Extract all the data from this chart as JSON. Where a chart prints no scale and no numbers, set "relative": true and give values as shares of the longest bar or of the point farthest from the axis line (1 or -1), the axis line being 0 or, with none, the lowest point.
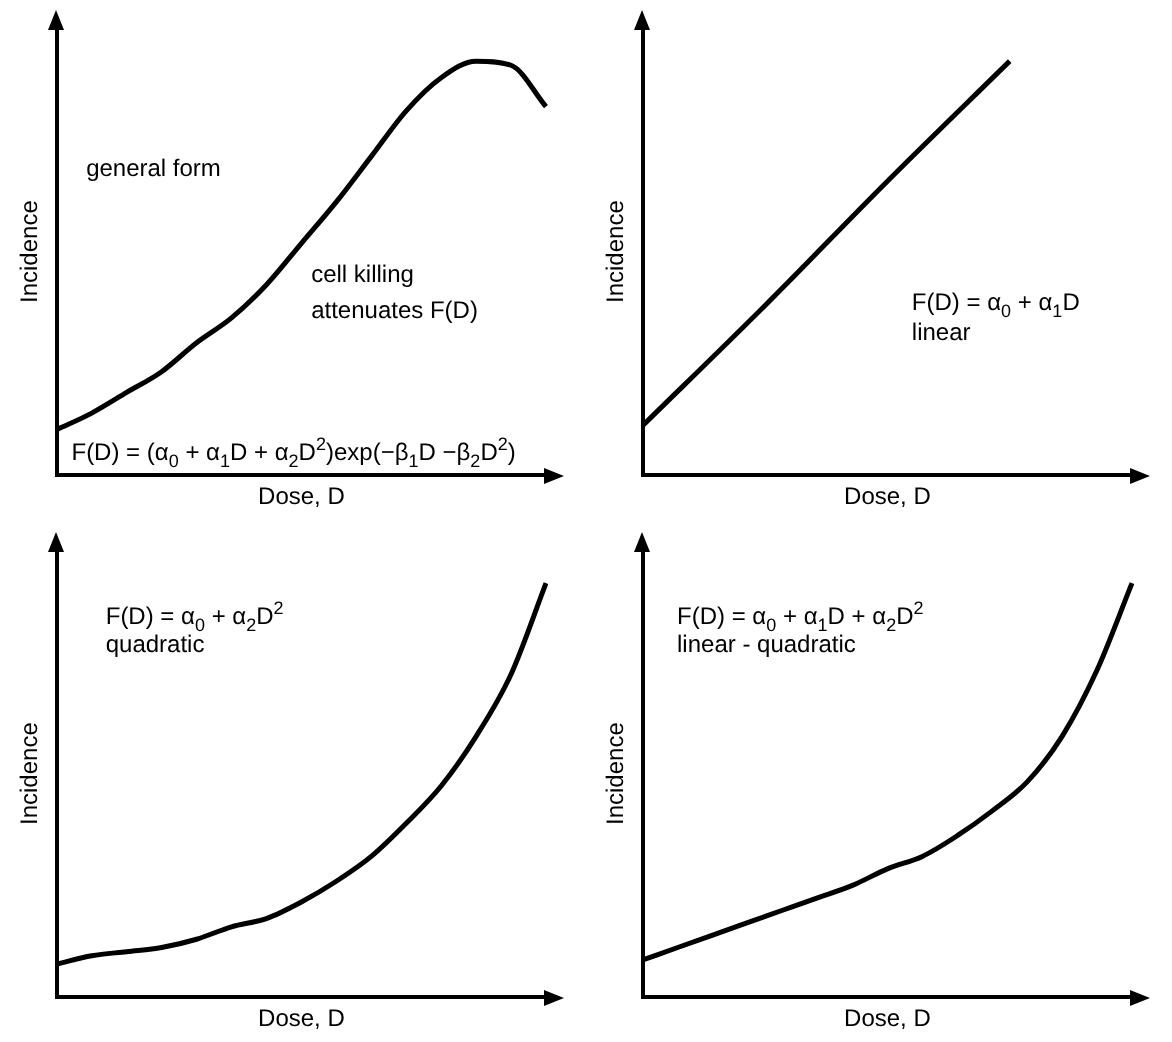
{
  "chart_data": [
    {
      "type": "line",
      "relative": true,
      "xlabel": "Dose, D",
      "ylabel": "Incidence",
      "tick_labels": false,
      "color": "#000000",
      "categories": [
        null,
        null,
        null,
        null,
        null,
        null,
        null,
        null,
        null,
        null,
        null,
        null,
        null,
        null,
        null
      ],
      "values": [
        0.11,
        0.15,
        0.2,
        0.25,
        0.32,
        0.38,
        0.46,
        0.56,
        0.66,
        0.77,
        0.88,
        0.96,
        1.0,
        0.99,
        0.89
      ],
      "annotations": [
        "general form",
        "cell killing",
        "attenuates F(D)",
        "F(D) = (α$_{0}$ + α$_{1}$D + α$_{2}$D$^{2}$)exp(−β$_{1}$D −β$_{2}$D$^{2}$)"
      ]
    },
    {
      "type": "line",
      "relative": true,
      "xlabel": "Dose, D",
      "ylabel": "Incidence",
      "tick_labels": false,
      "color": "#000000",
      "categories": [
        null,
        null,
        null,
        null,
        null
      ],
      "values": [
        0.12,
        0.41,
        0.71,
        1.0,
        null
      ],
      "annotations": [
        "F(D) = α$_{0}$ + α$_{1}$D",
        "linear"
      ]
    },
    {
      "type": "line",
      "relative": true,
      "xlabel": "Dose, D",
      "ylabel": "Incidence",
      "tick_labels": false,
      "color": "#000000",
      "categories": [
        null,
        null,
        null,
        null,
        null,
        null,
        null,
        null,
        null,
        null,
        null,
        null,
        null,
        null,
        null
      ],
      "values": [
        0.08,
        0.1,
        0.11,
        0.12,
        0.14,
        0.17,
        0.19,
        0.23,
        0.28,
        0.34,
        0.42,
        0.51,
        0.63,
        0.78,
        1.0
      ],
      "annotations": [
        "F(D) = α$_{0}$ + α$_{2}$D$^{2}$",
        "quadratic"
      ]
    },
    {
      "type": "line",
      "relative": true,
      "xlabel": "Dose, D",
      "ylabel": "Incidence",
      "tick_labels": false,
      "color": "#000000",
      "categories": [
        null,
        null,
        null,
        null,
        null,
        null,
        null,
        null,
        null,
        null,
        null,
        null,
        null,
        null,
        null
      ],
      "values": [
        0.09,
        0.12,
        0.15,
        0.18,
        0.21,
        0.24,
        0.27,
        0.31,
        0.34,
        0.39,
        0.45,
        0.52,
        0.63,
        0.79,
        1.0
      ],
      "annotations": [
        "F(D) = α$_{0}$ + α$_{1}$D + α$_{2}$D$^{2}$",
        "linear - quadratic"
      ]
    }
  ]
}
